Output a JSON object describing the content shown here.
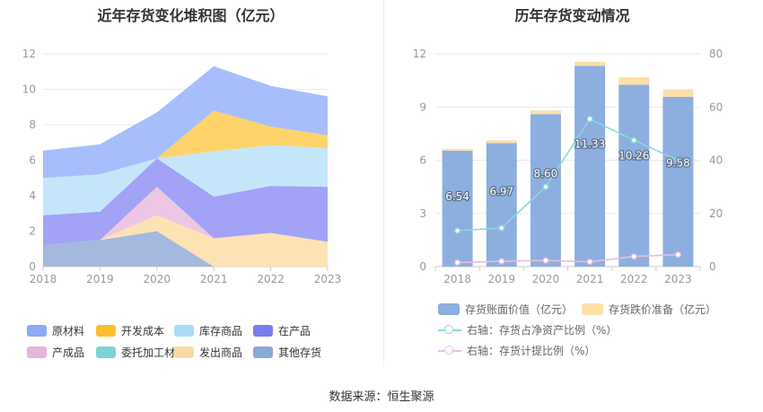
{
  "source": "数据来源：恒生聚源",
  "chart_data": [
    {
      "type": "area",
      "title": "近年存货变化堆积图（亿元）",
      "x": [
        "2018",
        "2019",
        "2020",
        "2021",
        "2022",
        "2023"
      ],
      "ylim": [
        0,
        12
      ],
      "yticks": [
        0,
        2,
        4,
        6,
        8,
        10,
        12
      ],
      "stacked": true,
      "grid": true,
      "legend_position": "bottom",
      "series": [
        {
          "name": "其他存货",
          "color": "#a4b9dd",
          "values": [
            1.2,
            1.5,
            2.0,
            0.0,
            0.0,
            0.0
          ]
        },
        {
          "name": "发出商品",
          "color": "#fde2b4",
          "values": [
            0.0,
            0.0,
            0.9,
            1.6,
            1.9,
            1.4
          ]
        },
        {
          "name": "委托加工材料",
          "color": "#8fd6d6",
          "values": [
            0.0,
            0.0,
            0.0,
            0.0,
            0.0,
            0.0
          ]
        },
        {
          "name": "产成品",
          "color": "#ecc6e2",
          "values": [
            0.0,
            0.0,
            1.6,
            0.0,
            0.0,
            0.0
          ]
        },
        {
          "name": "在产品",
          "color": "#a2a2f7",
          "values": [
            1.7,
            1.6,
            1.6,
            2.35,
            2.65,
            3.1
          ]
        },
        {
          "name": "库存商品",
          "color": "#c5e6fa",
          "values": [
            2.1,
            2.1,
            0.0,
            2.55,
            2.3,
            2.2
          ]
        },
        {
          "name": "开发成本",
          "color": "#fdd36a",
          "values": [
            0.0,
            0.0,
            0.0,
            2.3,
            1.05,
            0.7
          ]
        },
        {
          "name": "原材料",
          "color": "#a8bdfc",
          "values": [
            1.54,
            1.7,
            2.6,
            2.5,
            2.3,
            2.2
          ]
        }
      ],
      "legend": [
        {
          "name": "原材料",
          "color": "#8eaaf8"
        },
        {
          "name": "开发成本",
          "color": "#fcbf2c"
        },
        {
          "name": "库存商品",
          "color": "#a9dcf7"
        },
        {
          "name": "在产品",
          "color": "#7b7bef"
        },
        {
          "name": "产成品",
          "color": "#e3b6da"
        },
        {
          "name": "委托加工材料",
          "color": "#7fd3d3"
        },
        {
          "name": "发出商品",
          "color": "#fcd9a2"
        },
        {
          "name": "其他存货",
          "color": "#8aaad8"
        }
      ]
    },
    {
      "type": "bar",
      "title": "历年存货变动情况",
      "categories": [
        "2018",
        "2019",
        "2020",
        "2021",
        "2022",
        "2023"
      ],
      "ylim_left": [
        0,
        12
      ],
      "yticks_left": [
        0,
        3,
        6,
        9,
        12
      ],
      "ylim_right": [
        0,
        80
      ],
      "yticks_right": [
        0,
        20,
        40,
        60,
        80
      ],
      "grid": true,
      "legend_position": "bottom",
      "series": [
        {
          "name": "存货账面价值（亿元）",
          "axis": "left",
          "type": "bar",
          "color": "#8dafdf",
          "values": [
            6.54,
            6.97,
            8.6,
            11.33,
            10.26,
            9.58
          ],
          "labels": [
            "6.54",
            "6.97",
            "8.60",
            "11.33",
            "10.26",
            "9.58"
          ]
        },
        {
          "name": "存货跌价准备（亿元）",
          "axis": "left",
          "type": "bar",
          "color": "#fde0a8",
          "values": [
            0.1,
            0.15,
            0.2,
            0.22,
            0.42,
            0.43
          ]
        },
        {
          "name": "右轴：存货占净资产比例（%）",
          "axis": "right",
          "type": "line",
          "color": "#8ad8d8",
          "values": [
            13.5,
            14.5,
            30.0,
            55.5,
            47.5,
            40.0
          ]
        },
        {
          "name": "右轴：存货计提比例（%）",
          "axis": "right",
          "type": "line",
          "color": "#e8bde2",
          "values": [
            1.5,
            2.0,
            2.3,
            1.8,
            3.8,
            4.5
          ]
        }
      ]
    }
  ]
}
